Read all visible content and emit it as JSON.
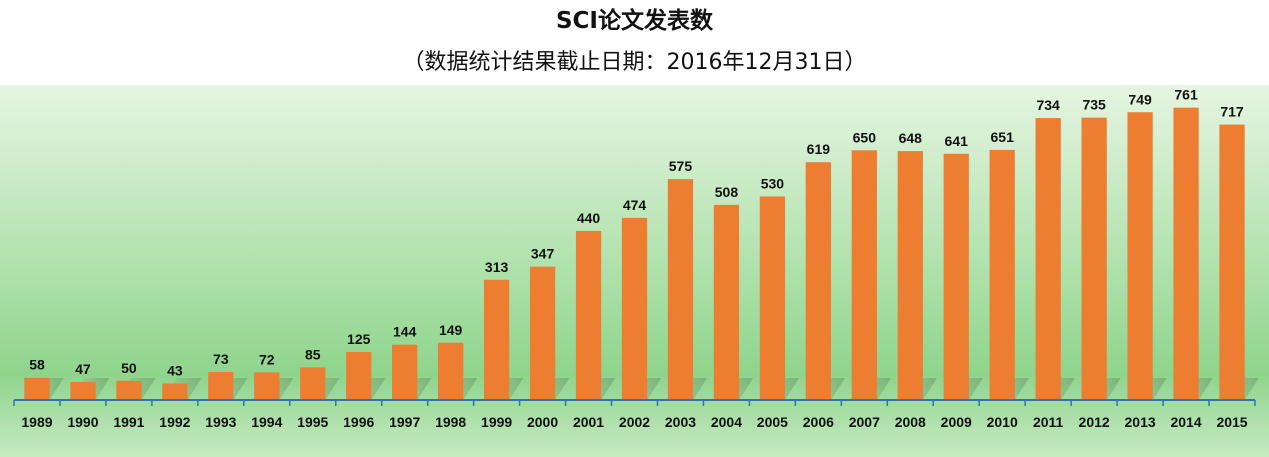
{
  "title": "SCI论文发表数",
  "subtitle": "（数据统计结果截止日期：2016年12月31日）",
  "colors": {
    "bar": "#ED7D31",
    "axis": "#2E75B6",
    "background_top": "#E6F5E2",
    "background_mid": "#9ADB98",
    "label": "#111111"
  },
  "chart_data": {
    "type": "bar",
    "title": "SCI论文发表数",
    "subtitle": "（数据统计结果截止日期：2016年12月31日）",
    "categories": [
      "1989",
      "1990",
      "1991",
      "1992",
      "1993",
      "1994",
      "1995",
      "1996",
      "1997",
      "1998",
      "1999",
      "2000",
      "2001",
      "2002",
      "2003",
      "2004",
      "2005",
      "2006",
      "2007",
      "2008",
      "2009",
      "2010",
      "2011",
      "2012",
      "2013",
      "2014",
      "2015"
    ],
    "values": [
      58,
      47,
      50,
      43,
      73,
      72,
      85,
      125,
      144,
      149,
      313,
      347,
      440,
      474,
      575,
      508,
      530,
      619,
      650,
      648,
      641,
      651,
      734,
      735,
      749,
      761,
      717
    ],
    "ylim": [
      0,
      820
    ],
    "grid": false,
    "legend": "none",
    "data_labels": true
  }
}
